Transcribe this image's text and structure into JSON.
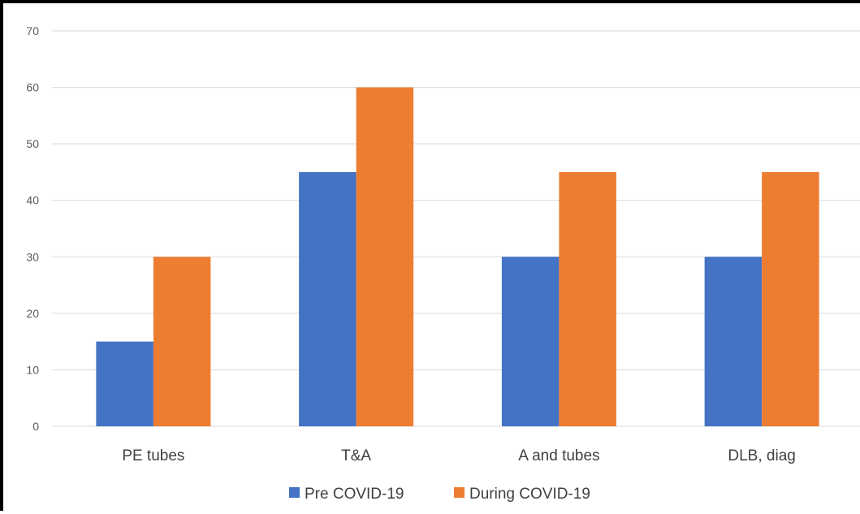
{
  "chart_data": {
    "type": "bar",
    "title": "",
    "xlabel": "",
    "ylabel": "",
    "categories": [
      "PE tubes",
      "T&A",
      "A and tubes",
      "DLB, diag"
    ],
    "series": [
      {
        "name": "Pre COVID-19",
        "color": "#4472C4",
        "values": [
          15,
          45,
          30,
          30
        ]
      },
      {
        "name": "During COVID-19",
        "color": "#ED7D31",
        "values": [
          30,
          60,
          45,
          45
        ]
      }
    ],
    "ylim": [
      0,
      70
    ],
    "yticks": [
      0,
      10,
      20,
      30,
      40,
      50,
      60,
      70
    ],
    "grid": true,
    "legend_position": "bottom"
  }
}
